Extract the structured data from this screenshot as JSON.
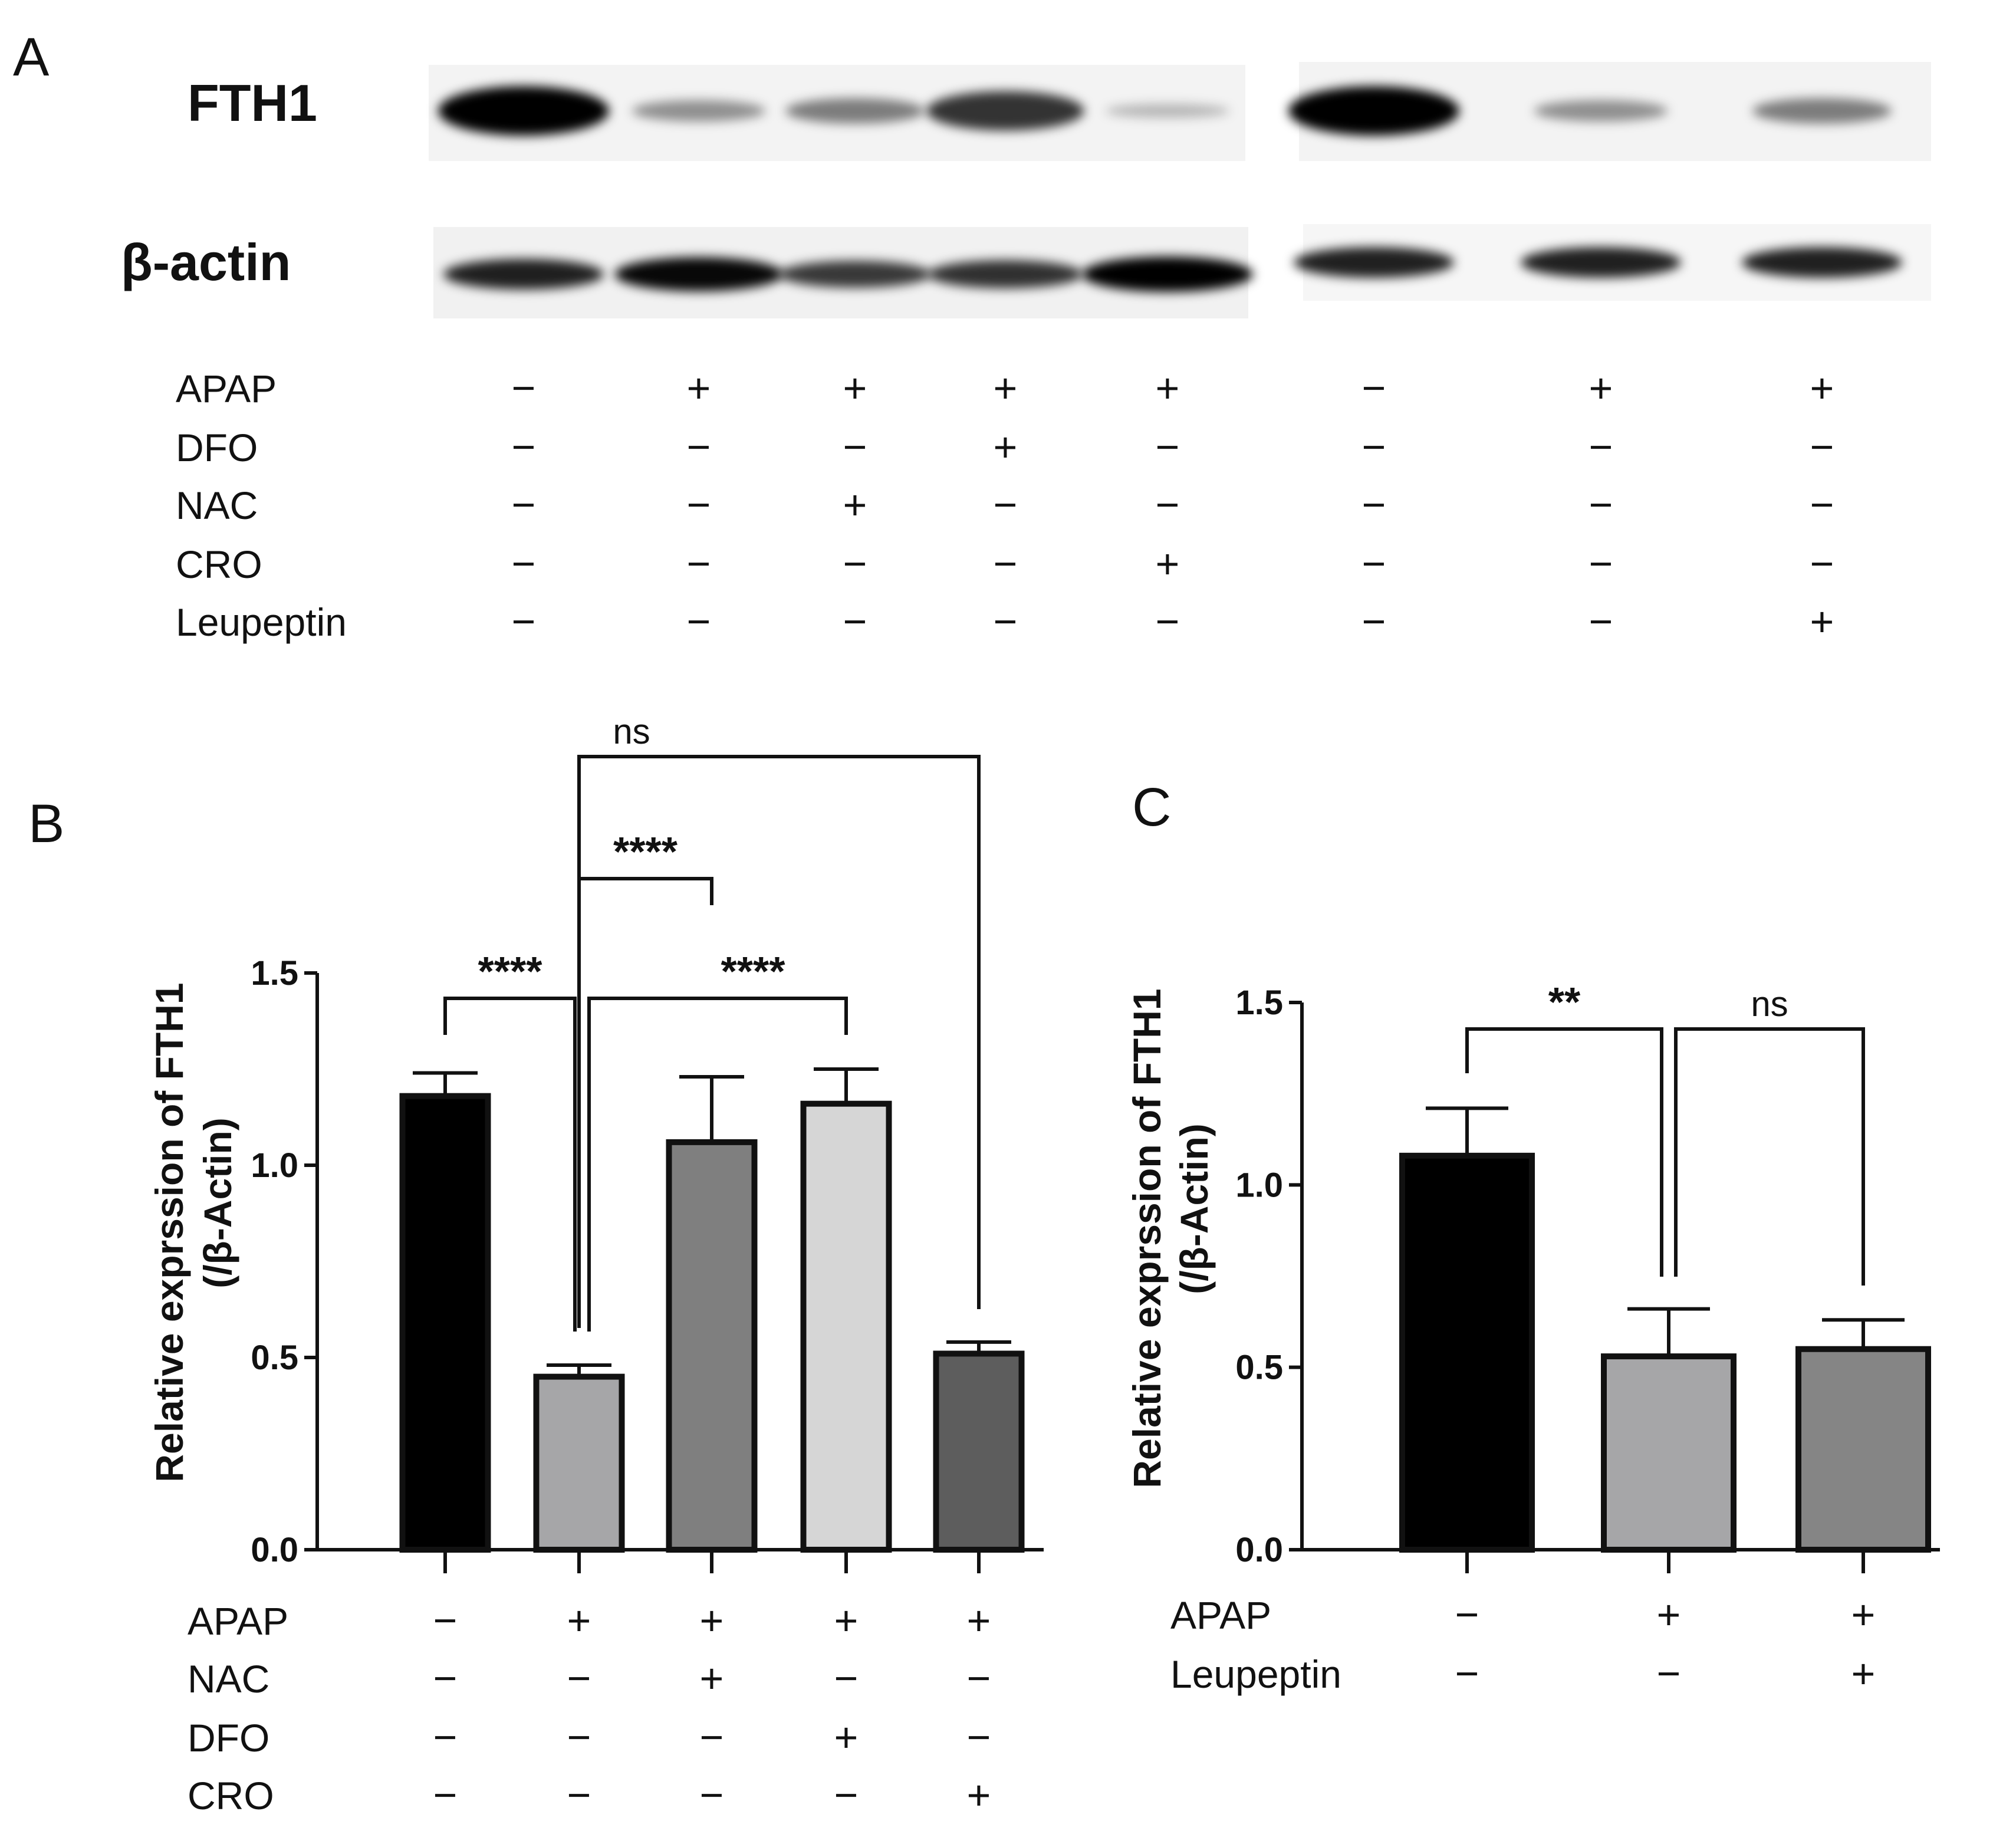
{
  "panelA": {
    "letter": "A",
    "blot_labels": [
      "FTH1",
      "β-actin"
    ],
    "condition_labels": [
      "APAP",
      "DFO",
      "NAC",
      "CRO",
      "Leupeptin"
    ],
    "condition_signs": [
      [
        "−",
        "+",
        "+",
        "+",
        "+",
        "−",
        "+",
        "+"
      ],
      [
        "−",
        "−",
        "−",
        "+",
        "−",
        "−",
        "−",
        "−"
      ],
      [
        "−",
        "−",
        "+",
        "−",
        "−",
        "−",
        "−",
        "−"
      ],
      [
        "−",
        "−",
        "−",
        "−",
        "+",
        "−",
        "−",
        "−"
      ],
      [
        "−",
        "−",
        "−",
        "−",
        "−",
        "−",
        "−",
        "+"
      ]
    ],
    "band_intensity": {
      "FTH1": [
        1.0,
        0.3,
        0.4,
        0.75,
        0.12,
        1.0,
        0.3,
        0.4
      ],
      "beta_actin": [
        0.8,
        0.95,
        0.65,
        0.7,
        1.0,
        0.8,
        0.8,
        0.8
      ]
    }
  },
  "chart_data": [
    {
      "panel": "B",
      "type": "bar",
      "ylabel_lines": [
        "Relative exprssion of FTH1",
        "(/β-Actin)"
      ],
      "ylim": [
        0,
        1.5
      ],
      "yticks": [
        "0.0",
        "0.5",
        "1.0",
        "1.5"
      ],
      "values": [
        1.18,
        0.45,
        1.06,
        1.16,
        0.51
      ],
      "errors": [
        0.06,
        0.03,
        0.17,
        0.09,
        0.03
      ],
      "colors": [
        "#000000",
        "#a6a6a8",
        "#7f7f7f",
        "#d6d6d6",
        "#5d5d5d"
      ],
      "condition_labels": [
        "APAP",
        "NAC",
        "DFO",
        "CRO"
      ],
      "condition_signs": [
        [
          "−",
          "+",
          "+",
          "+",
          "+"
        ],
        [
          "−",
          "−",
          "+",
          "−",
          "−"
        ],
        [
          "−",
          "−",
          "−",
          "+",
          "−"
        ],
        [
          "−",
          "−",
          "−",
          "−",
          "+"
        ]
      ],
      "significance": [
        {
          "from": 0,
          "to": 1,
          "label": "****"
        },
        {
          "from": 1,
          "to": 2,
          "label": "****"
        },
        {
          "from": 1,
          "to": 3,
          "label": "****"
        },
        {
          "from": 1,
          "to": 4,
          "label": "ns"
        }
      ]
    },
    {
      "panel": "C",
      "type": "bar",
      "ylabel_lines": [
        "Relative exprssion of FTH1",
        "(/β-Actin)"
      ],
      "ylim": [
        0,
        1.5
      ],
      "yticks": [
        "0.0",
        "0.5",
        "1.0",
        "1.5"
      ],
      "values": [
        1.08,
        0.53,
        0.55
      ],
      "errors": [
        0.13,
        0.13,
        0.08
      ],
      "colors": [
        "#000000",
        "#a6a6a8",
        "#858585"
      ],
      "condition_labels": [
        "APAP",
        "Leupeptin"
      ],
      "condition_signs": [
        [
          "−",
          "+",
          "+"
        ],
        [
          "−",
          "−",
          "+"
        ]
      ],
      "significance": [
        {
          "from": 0,
          "to": 1,
          "label": "**"
        },
        {
          "from": 1,
          "to": 2,
          "label": "ns"
        }
      ]
    }
  ]
}
